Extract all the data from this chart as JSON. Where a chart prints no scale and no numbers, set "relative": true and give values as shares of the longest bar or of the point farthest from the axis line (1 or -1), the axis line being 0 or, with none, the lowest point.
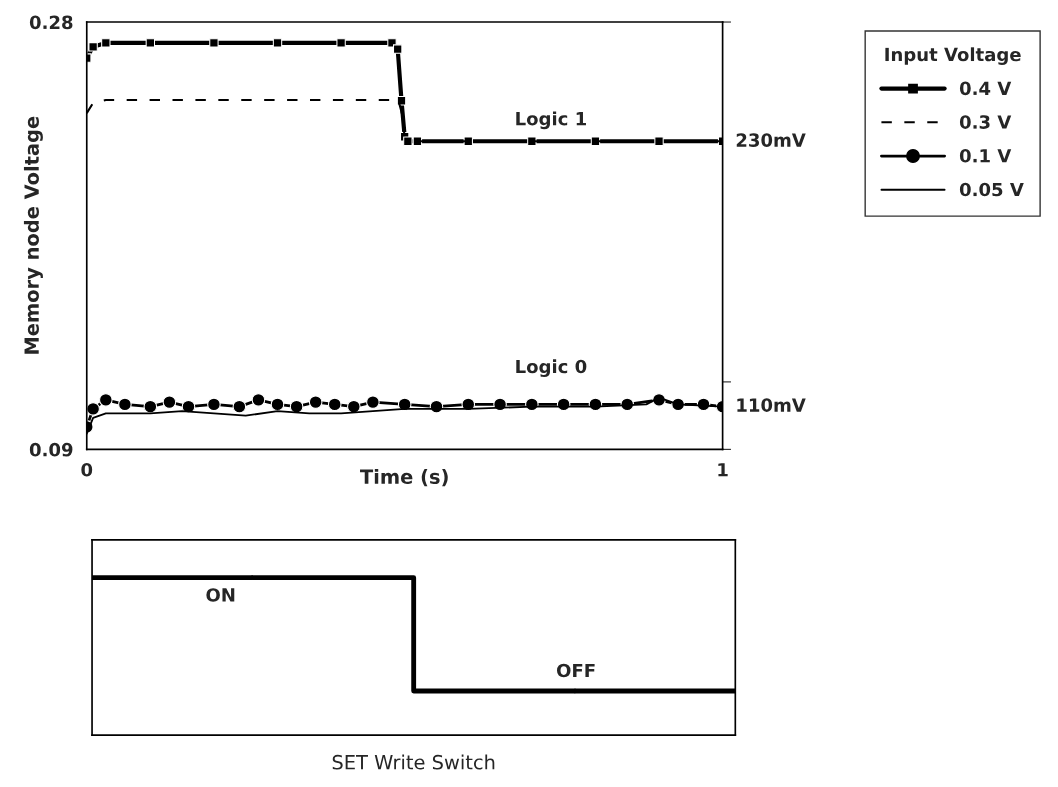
{
  "chart_data": [
    {
      "type": "line",
      "xlabel": "Time (s)",
      "ylabel": "Memory node Voltage",
      "legend_title": "Input Voltage",
      "legend": "top right",
      "grid": false,
      "xlim": [
        0,
        1
      ],
      "ylim": [
        0.09,
        0.28
      ],
      "xticks": [
        0,
        1
      ],
      "yticks": [
        0.09,
        {
          "value": 0.12,
          "label": null
        },
        0.28
      ],
      "series": [
        {
          "name": "0.4 V",
          "color": "#000000",
          "marker": "square",
          "line_style": "solid",
          "x": [
            0,
            0.01,
            0.03,
            0.1,
            0.2,
            0.3,
            0.4,
            0.48,
            0.489,
            0.495,
            0.5,
            0.505,
            0.52,
            0.6,
            0.7,
            0.8,
            0.9,
            1
          ],
          "values": [
            0.264,
            0.269,
            0.2707,
            0.2707,
            0.2707,
            0.2707,
            0.2707,
            0.2707,
            0.268,
            0.245,
            0.229,
            0.227,
            0.227,
            0.227,
            0.227,
            0.227,
            0.227,
            0.227
          ]
        },
        {
          "name": "0.3 V",
          "color": "#000000",
          "marker": "none",
          "line_style": "dashed",
          "x": [
            0,
            0.01,
            0.03,
            0.1,
            0.2,
            0.3,
            0.4,
            0.49,
            0.495,
            0.5,
            0.505,
            0.52,
            0.6,
            0.7,
            0.8,
            0.9,
            1
          ],
          "values": [
            0.2395,
            0.244,
            0.2453,
            0.2453,
            0.2453,
            0.2453,
            0.2453,
            0.2453,
            0.24,
            0.229,
            0.227,
            0.227,
            0.227,
            0.227,
            0.227,
            0.227,
            0.227
          ]
        },
        {
          "name": "0.1 V",
          "color": "#000000",
          "marker": "circle",
          "line_style": "solid",
          "x": [
            0,
            0.01,
            0.03,
            0.06,
            0.1,
            0.13,
            0.16,
            0.2,
            0.24,
            0.27,
            0.3,
            0.33,
            0.36,
            0.39,
            0.42,
            0.45,
            0.5,
            0.55,
            0.6,
            0.65,
            0.7,
            0.75,
            0.8,
            0.85,
            0.9,
            0.93,
            0.97,
            1
          ],
          "values": [
            0.1,
            0.108,
            0.112,
            0.11,
            0.109,
            0.111,
            0.109,
            0.11,
            0.109,
            0.112,
            0.11,
            0.109,
            0.111,
            0.11,
            0.109,
            0.111,
            0.11,
            0.109,
            0.11,
            0.11,
            0.11,
            0.11,
            0.11,
            0.11,
            0.112,
            0.11,
            0.11,
            0.109
          ]
        },
        {
          "name": "0.05 V",
          "color": "#000000",
          "marker": "none",
          "line_style": "solid",
          "x": [
            0,
            0.01,
            0.03,
            0.1,
            0.15,
            0.2,
            0.25,
            0.3,
            0.35,
            0.4,
            0.45,
            0.5,
            0.6,
            0.7,
            0.8,
            0.88,
            0.9,
            0.93,
            1
          ],
          "values": [
            0.097,
            0.104,
            0.106,
            0.106,
            0.107,
            0.106,
            0.105,
            0.107,
            0.106,
            0.106,
            0.107,
            0.108,
            0.108,
            0.109,
            0.109,
            0.11,
            0.113,
            0.11,
            0.109
          ]
        }
      ],
      "annotations": [
        "Logic 1",
        "Logic 0",
        "230mV",
        "110mV"
      ]
    },
    {
      "type": "step",
      "relative": true,
      "xlabel": "SET Write Switch",
      "tick_labels": false,
      "categories": [
        null,
        null
      ],
      "values": [
        1,
        0.28
      ],
      "color": "#000000",
      "annotations": [
        "ON",
        "OFF"
      ]
    }
  ]
}
